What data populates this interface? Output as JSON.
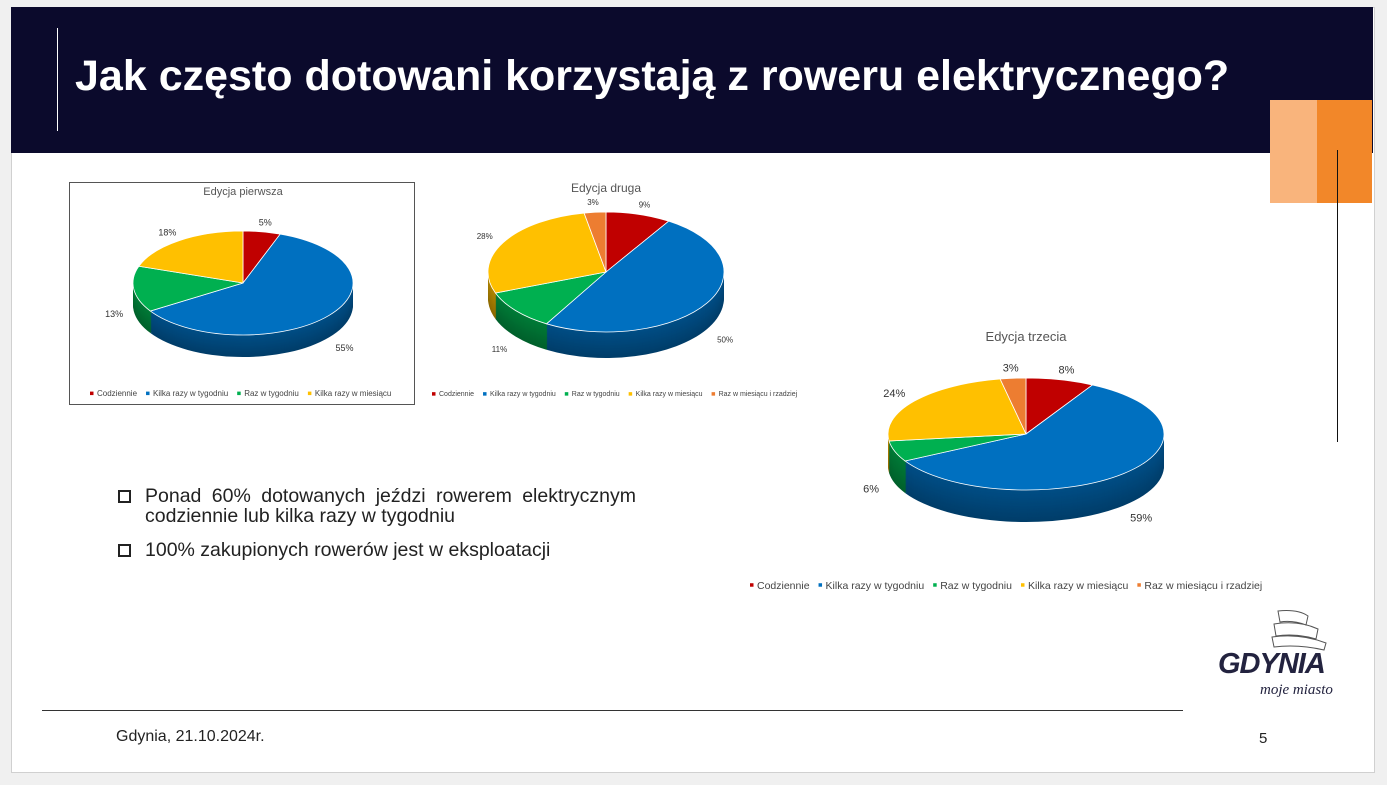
{
  "title": "Jak często dotowani korzystają z roweru elektrycznego?",
  "bullets": [
    "Ponad 60% dotowanych jeździ rowerem elektrycznym codziennie lub kilka razy w tygodniu",
    "100% zakupionych rowerów jest w eksploatacji"
  ],
  "footer": {
    "date": "Gdynia, 21.10.2024r.",
    "page": "5"
  },
  "logo": {
    "text": "GDYNIA",
    "tagline": "moje miasto"
  },
  "colors": {
    "header": "#0b0a2c",
    "accent_light": "#f9b47c",
    "accent": "#f28729"
  },
  "chart_data": [
    {
      "type": "pie",
      "title": "Edycja pierwsza",
      "categories": [
        "Codziennie",
        "Kilka razy w tygodniu",
        "Raz w tygodniu",
        "Kilka razy w miesiącu"
      ],
      "values": [
        5,
        55,
        13,
        18
      ],
      "labels": [
        "5%",
        "55%",
        "13%",
        "18%"
      ],
      "colors": [
        "#c00000",
        "#0070c0",
        "#00b050",
        "#ffc000"
      ],
      "legend": "bottom",
      "style": "3d"
    },
    {
      "type": "pie",
      "title": "Edycja druga",
      "categories": [
        "Codziennie",
        "Kilka razy w tygodniu",
        "Raz w tygodniu",
        "Kilka razy w miesiącu",
        "Raz w miesiącu i rzadziej"
      ],
      "values": [
        9,
        50,
        11,
        28,
        3
      ],
      "labels": [
        "9%",
        "50%",
        "11%",
        "28%",
        "3%"
      ],
      "colors": [
        "#c00000",
        "#0070c0",
        "#00b050",
        "#ffc000",
        "#ed7d31"
      ],
      "legend": "bottom",
      "style": "3d"
    },
    {
      "type": "pie",
      "title": "Edycja trzecia",
      "categories": [
        "Codziennie",
        "Kilka razy w tygodniu",
        "Raz w tygodniu",
        "Kilka razy w miesiącu",
        "Raz  w miesiącu i rzadziej"
      ],
      "values": [
        8,
        59,
        6,
        24,
        3
      ],
      "labels": [
        "8%",
        "59%",
        "6%",
        "24%",
        "3%"
      ],
      "colors": [
        "#c00000",
        "#0070c0",
        "#00b050",
        "#ffc000",
        "#ed7d31"
      ],
      "legend": "bottom",
      "style": "3d"
    }
  ]
}
